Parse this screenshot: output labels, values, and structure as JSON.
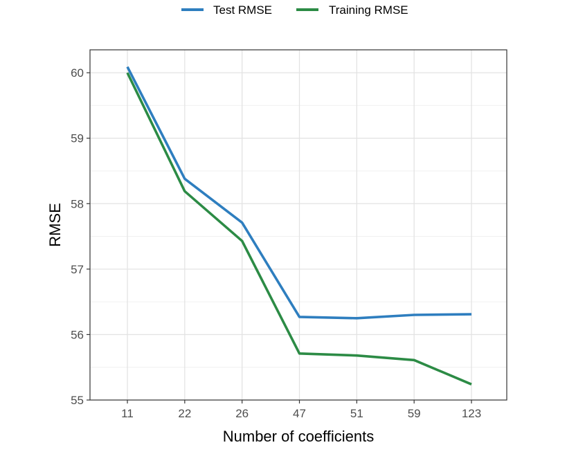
{
  "chart_data": {
    "type": "line",
    "xlabel": "Number of coefficients",
    "ylabel": "RMSE",
    "categories": [
      "11",
      "22",
      "26",
      "47",
      "51",
      "59",
      "123"
    ],
    "ylim": [
      55,
      60.35
    ],
    "yticks": [
      "55",
      "56",
      "57",
      "58",
      "59",
      "60"
    ],
    "grid": true,
    "legend_position": "top",
    "series": [
      {
        "name": "Test RMSE",
        "color": "#2E7EBF",
        "values": [
          60.09,
          58.38,
          57.71,
          56.27,
          56.25,
          56.3,
          56.31
        ]
      },
      {
        "name": "Training RMSE",
        "color": "#2C8B45",
        "values": [
          60.0,
          58.19,
          57.43,
          55.71,
          55.68,
          55.61,
          55.24
        ]
      }
    ]
  }
}
